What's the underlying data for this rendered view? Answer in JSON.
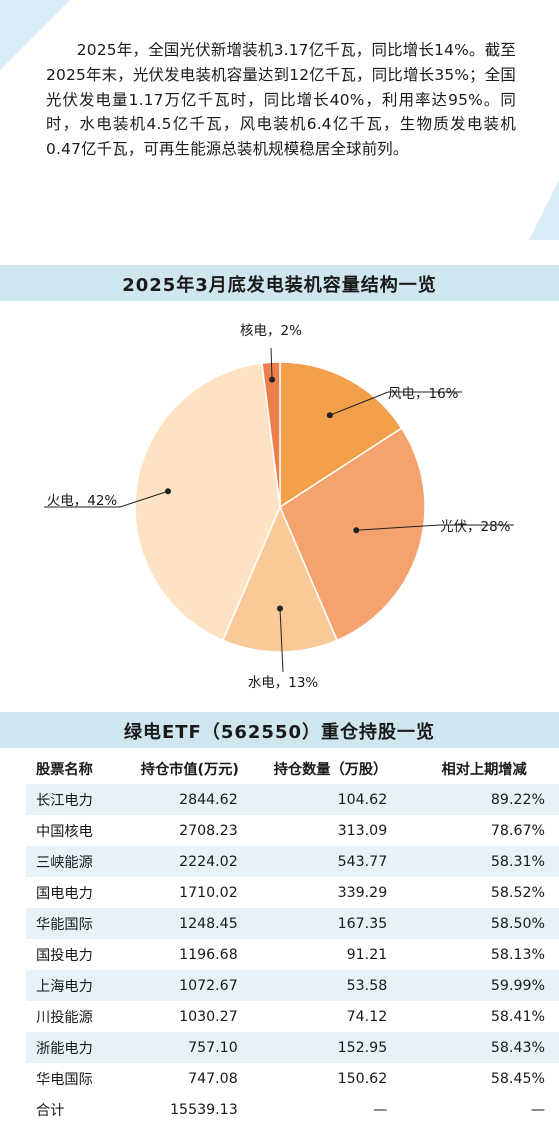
{
  "intro": "2025年，全国光伏新增装机3.17亿千瓦，同比增长14%。截至2025年末，光伏发电装机容量达到12亿千瓦，同比增长35%；全国光伏发电量1.17万亿千瓦时，同比增长40%，利用率达95%。同时，水电装机4.5亿千瓦，风电装机6.4亿千瓦，生物质发电装机0.47亿千瓦，可再生能源总装机规模稳居全球前列。",
  "chart_data": {
    "type": "pie",
    "title": "2025年3月底发电装机容量结构一览",
    "slices": [
      {
        "name": "风电",
        "value": 16,
        "label": "风电，16%",
        "color": "#f2a04a"
      },
      {
        "name": "光伏",
        "value": 28,
        "label": "光伏，28%",
        "color": "#f4a36e"
      },
      {
        "name": "水电",
        "value": 13,
        "label": "水电，13%",
        "color": "#f9c998"
      },
      {
        "name": "火电",
        "value": 42,
        "label": "火电，42%",
        "color": "#fde3c4"
      },
      {
        "name": "核电",
        "value": 2,
        "label": "核电，2%",
        "color": "#ec7f4a"
      }
    ]
  },
  "table": {
    "title": "绿电ETF（562550）重仓持股一览",
    "headers": [
      "股票名称",
      "持仓市值(万元)",
      "持仓数量（万股）",
      "相对上期增减"
    ],
    "rows": [
      [
        "长江电力",
        "2844.62",
        "104.62",
        "89.22%"
      ],
      [
        "中国核电",
        "2708.23",
        "313.09",
        "78.67%"
      ],
      [
        "三峡能源",
        "2224.02",
        "543.77",
        "58.31%"
      ],
      [
        "国电电力",
        "1710.02",
        "339.29",
        "58.52%"
      ],
      [
        "华能国际",
        "1248.45",
        "167.35",
        "58.50%"
      ],
      [
        "国投电力",
        "1196.68",
        "91.21",
        "58.13%"
      ],
      [
        "上海电力",
        "1072.67",
        "53.58",
        "59.99%"
      ],
      [
        "川投能源",
        "1030.27",
        "74.12",
        "58.41%"
      ],
      [
        "浙能电力",
        "757.10",
        "152.95",
        "58.43%"
      ],
      [
        "华电国际",
        "747.08",
        "150.62",
        "58.45%"
      ]
    ],
    "total": [
      "合计",
      "15539.13",
      "—",
      "—"
    ]
  },
  "colors": {
    "header_band": "#cfe6ef",
    "row_stripe": "#e6f2f7",
    "corner_accent": "#d8ecf5"
  }
}
